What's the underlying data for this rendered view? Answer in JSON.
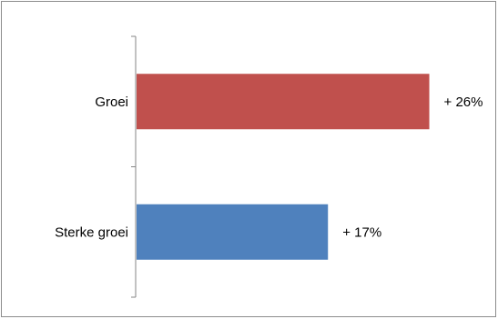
{
  "chart_data": {
    "type": "bar",
    "orientation": "horizontal",
    "title": "",
    "xlabel": "",
    "ylabel": "",
    "categories": [
      "Groei",
      "Sterke groei"
    ],
    "values": [
      26,
      17
    ],
    "data_labels": [
      "+ 26%",
      "+ 17%"
    ],
    "bar_colors": [
      "#c0504d",
      "#4f81bd"
    ],
    "xlim": [
      0,
      30
    ],
    "legend": "none",
    "grid": false
  }
}
